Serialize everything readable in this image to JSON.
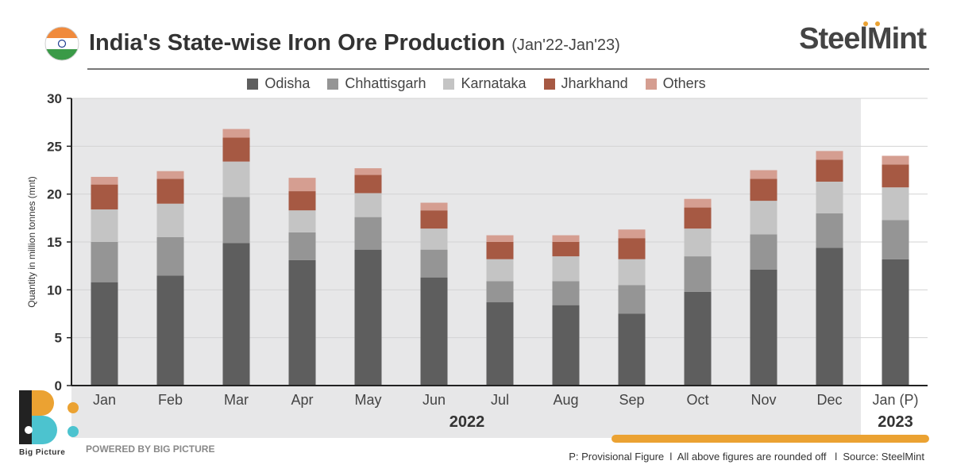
{
  "header": {
    "title": "India's State-wise Iron Ore Production",
    "subtitle": "(Jan'22-Jan'23)",
    "brand": "SteelMint",
    "brand_reg": "®"
  },
  "colors": {
    "Odisha": "#5e5e5e",
    "Chhattisgarh": "#959595",
    "Karnataka": "#c4c4c4",
    "Jharkhand": "#a65943",
    "Others": "#d59e91",
    "shade": "#e7e7e8",
    "accent": "#eba232"
  },
  "legend": [
    {
      "name": "Odisha"
    },
    {
      "name": "Chhattisgarh"
    },
    {
      "name": "Karnataka"
    },
    {
      "name": "Jharkhand"
    },
    {
      "name": "Others"
    }
  ],
  "chart_data": {
    "type": "bar",
    "stacked": true,
    "ylabel": "Quantity in million tonnes (mnt)",
    "ylim": [
      0,
      30
    ],
    "yticks": [
      0,
      5,
      10,
      15,
      20,
      25,
      30
    ],
    "categories": [
      "Jan",
      "Feb",
      "Mar",
      "Apr",
      "May",
      "Jun",
      "Jul",
      "Aug",
      "Sep",
      "Oct",
      "Nov",
      "Dec",
      "Jan (P)"
    ],
    "year_groups": [
      {
        "label": "2022",
        "count": 12
      },
      {
        "label": "2023",
        "count": 1
      }
    ],
    "series": [
      {
        "name": "Odisha",
        "values": [
          10.8,
          11.5,
          14.9,
          13.1,
          14.2,
          11.3,
          8.7,
          8.4,
          7.5,
          9.8,
          12.1,
          14.4,
          13.2
        ]
      },
      {
        "name": "Chhattisgarh",
        "values": [
          4.2,
          4.0,
          4.8,
          2.9,
          3.4,
          2.9,
          2.2,
          2.5,
          3.0,
          3.7,
          3.7,
          3.6,
          4.1
        ]
      },
      {
        "name": "Karnataka",
        "values": [
          3.4,
          3.5,
          3.7,
          2.3,
          2.5,
          2.2,
          2.3,
          2.6,
          2.7,
          2.9,
          3.5,
          3.3,
          3.4
        ]
      },
      {
        "name": "Jharkhand",
        "values": [
          2.6,
          2.6,
          2.5,
          2.0,
          1.9,
          1.9,
          1.8,
          1.5,
          2.2,
          2.2,
          2.3,
          2.3,
          2.4
        ]
      },
      {
        "name": "Others",
        "values": [
          0.8,
          0.8,
          0.9,
          1.4,
          0.7,
          0.8,
          0.7,
          0.7,
          0.9,
          0.9,
          0.9,
          0.9,
          0.9
        ]
      }
    ]
  },
  "footer": {
    "bp_label": "Big Picture",
    "powered": "POWERED BY BIG PICTURE",
    "note": "P: Provisional Figure  l  All above figures are rounded off   l  Source: SteelMint"
  }
}
